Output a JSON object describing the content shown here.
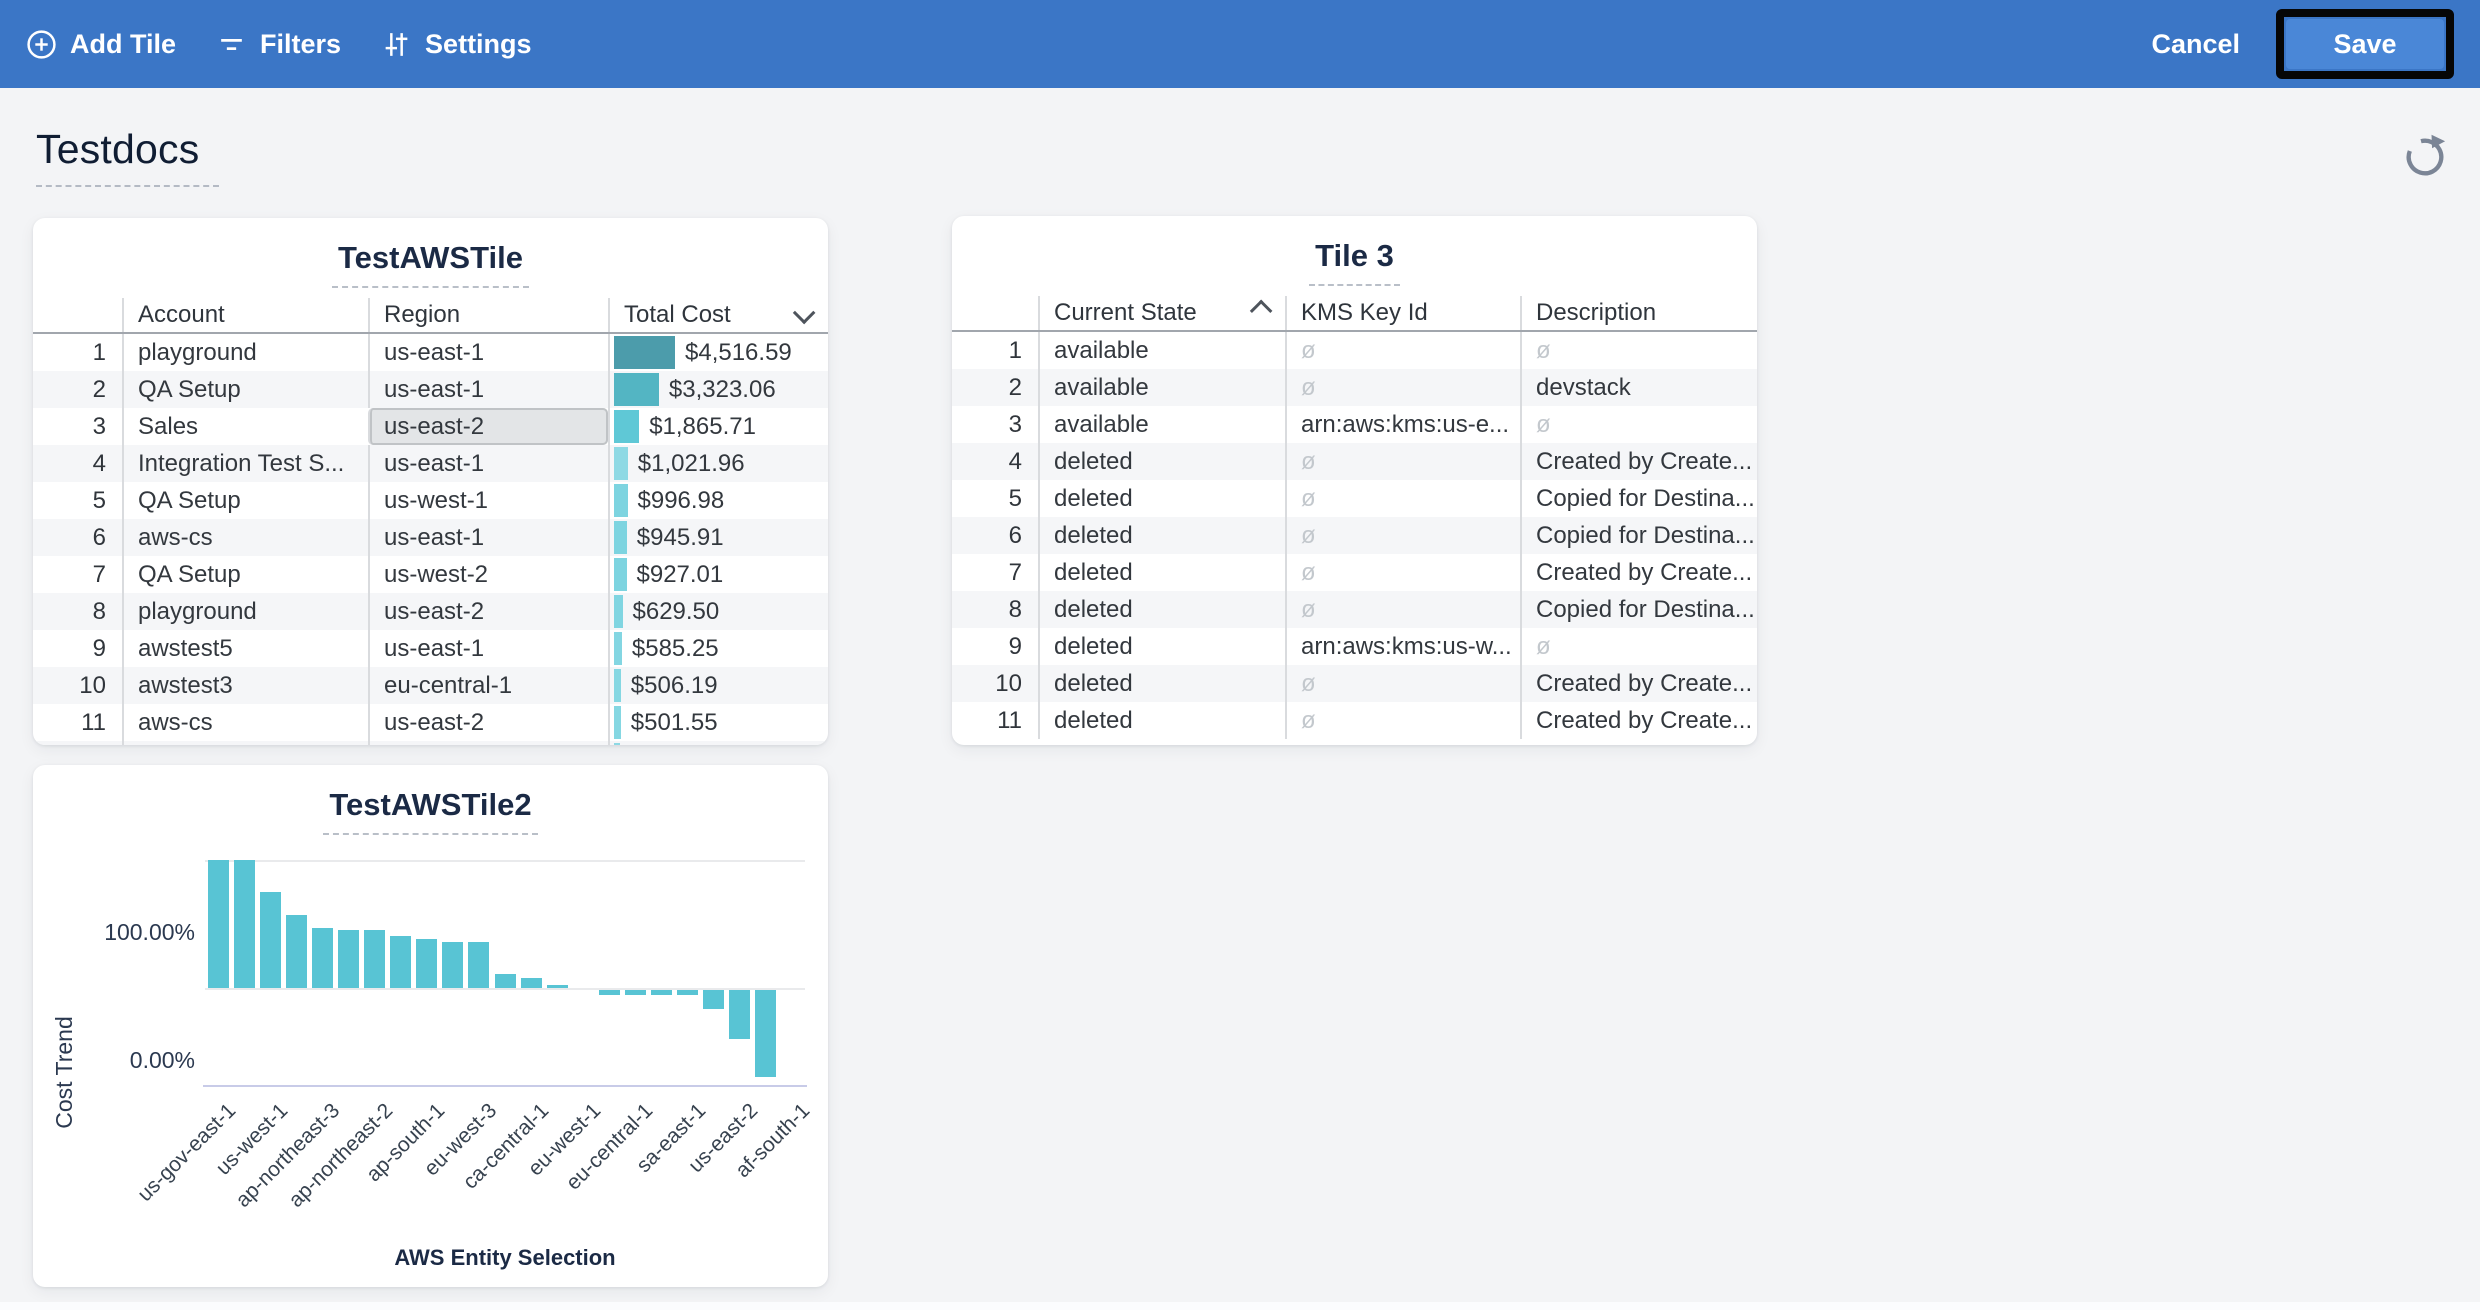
{
  "toolbar": {
    "add_tile": "Add Tile",
    "filters": "Filters",
    "settings": "Settings",
    "cancel": "Cancel",
    "save": "Save",
    "bg_color": "#3b76c6",
    "save_bg": "#4a87d7"
  },
  "page": {
    "title": "Testdocs"
  },
  "tiles": {
    "table1": {
      "title": "TestAWSTile",
      "columns": [
        "Account",
        "Region",
        "Total Cost"
      ],
      "sort": {
        "column": "Total Cost",
        "direction": "desc"
      },
      "selected_cell": {
        "row": 3,
        "column": "Region"
      },
      "max_cost_value": 4516.59,
      "bar_colors": [
        "#4c9cab",
        "#53b5c3",
        "#5fc8d6",
        "#8ed9e4",
        "#7dd4e0",
        "#7dd4e0",
        "#7dd4e0",
        "#80d5e1",
        "#83d6e2",
        "#85d7e2",
        "#85d7e2",
        "#8ed9e4"
      ],
      "rows": [
        {
          "n": "1",
          "account": "playground",
          "region": "us-east-1",
          "cost": "$4,516.59",
          "cost_value": 4516.59
        },
        {
          "n": "2",
          "account": "QA Setup",
          "region": "us-east-1",
          "cost": "$3,323.06",
          "cost_value": 3323.06
        },
        {
          "n": "3",
          "account": "Sales",
          "region": "us-east-2",
          "cost": "$1,865.71",
          "cost_value": 1865.71,
          "selected": "region"
        },
        {
          "n": "4",
          "account": "Integration Test S...",
          "region": "us-east-1",
          "cost": "$1,021.96",
          "cost_value": 1021.96
        },
        {
          "n": "5",
          "account": "QA Setup",
          "region": "us-west-1",
          "cost": "$996.98",
          "cost_value": 996.98
        },
        {
          "n": "6",
          "account": "aws-cs",
          "region": "us-east-1",
          "cost": "$945.91",
          "cost_value": 945.91
        },
        {
          "n": "7",
          "account": "QA Setup",
          "region": "us-west-2",
          "cost": "$927.01",
          "cost_value": 927.01
        },
        {
          "n": "8",
          "account": "playground",
          "region": "us-east-2",
          "cost": "$629.50",
          "cost_value": 629.5
        },
        {
          "n": "9",
          "account": "awstest5",
          "region": "us-east-1",
          "cost": "$585.25",
          "cost_value": 585.25
        },
        {
          "n": "10",
          "account": "awstest3",
          "region": "eu-central-1",
          "cost": "$506.19",
          "cost_value": 506.19
        },
        {
          "n": "11",
          "account": "aws-cs",
          "region": "us-east-2",
          "cost": "$501.55",
          "cost_value": 501.55
        },
        {
          "n": "",
          "account": "",
          "region": "",
          "cost": "",
          "cost_value": 430.0,
          "partial": true
        }
      ]
    },
    "table2": {
      "title": "Tile 3",
      "columns": [
        "Current State",
        "KMS Key Id",
        "Description"
      ],
      "sort": {
        "column": "Current State",
        "direction": "asc"
      },
      "null_symbol": "ø",
      "rows": [
        {
          "n": "1",
          "state": "available",
          "kms": null,
          "desc": null
        },
        {
          "n": "2",
          "state": "available",
          "kms": null,
          "desc": "devstack"
        },
        {
          "n": "3",
          "state": "available",
          "kms": "arn:aws:kms:us-e...",
          "desc": null
        },
        {
          "n": "4",
          "state": "deleted",
          "kms": null,
          "desc": "Created by Create..."
        },
        {
          "n": "5",
          "state": "deleted",
          "kms": null,
          "desc": "Copied for Destina..."
        },
        {
          "n": "6",
          "state": "deleted",
          "kms": null,
          "desc": "Copied for Destina..."
        },
        {
          "n": "7",
          "state": "deleted",
          "kms": null,
          "desc": "Created by Create..."
        },
        {
          "n": "8",
          "state": "deleted",
          "kms": null,
          "desc": "Copied for Destina..."
        },
        {
          "n": "9",
          "state": "deleted",
          "kms": "arn:aws:kms:us-w...",
          "desc": null
        },
        {
          "n": "10",
          "state": "deleted",
          "kms": null,
          "desc": "Created by Create..."
        },
        {
          "n": "11",
          "state": "deleted",
          "kms": null,
          "desc": "Created by Create..."
        }
      ]
    }
  },
  "chart_data": {
    "type": "bar",
    "title": "TestAWSTile2",
    "xlabel": "AWS Entity Selection",
    "ylabel": "Cost Trend",
    "unit": "percent",
    "y_tick_labels": [
      "100.00%",
      "0.00%"
    ],
    "ylim": [
      -80,
      110
    ],
    "grid": "horizontal",
    "bar_color": "#58c4d4",
    "values": [
      100,
      100,
      75,
      57,
      47,
      45,
      45,
      41,
      38,
      36,
      36,
      11,
      8,
      2,
      0,
      -4,
      -4,
      -4,
      -4,
      -15,
      -38,
      -68,
      0
    ],
    "x_tick_labels": [
      "us-gov-east-1",
      "us-west-1",
      "ap-northeast-3",
      "ap-northeast-2",
      "ap-south-1",
      "eu-west-3",
      "ca-central-1",
      "eu-west-1",
      "eu-central-1",
      "sa-east-1",
      "us-east-2",
      "af-south-1"
    ],
    "x_tick_every": 2
  }
}
